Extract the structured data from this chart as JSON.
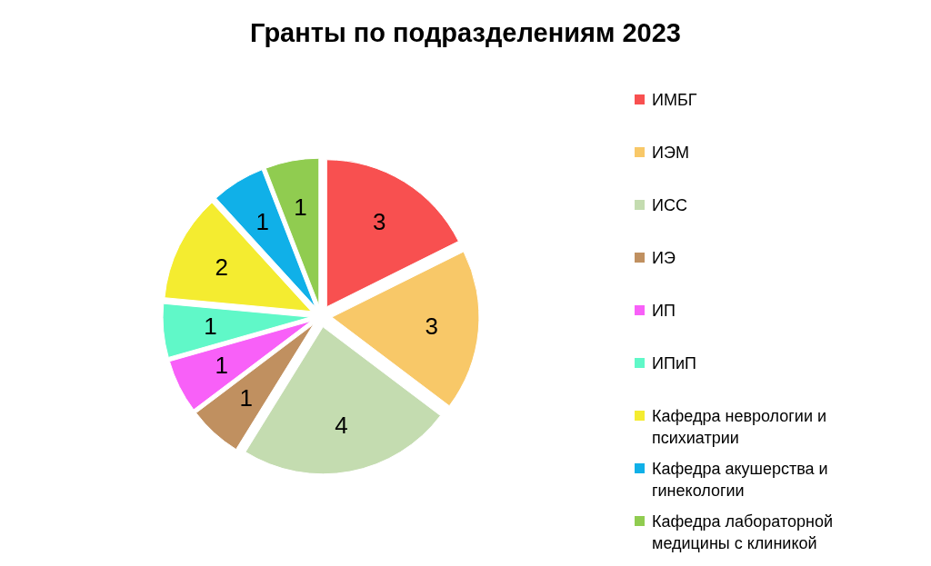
{
  "chart_data": {
    "type": "pie",
    "title": "Гранты по подразделениям 2023",
    "categories": [
      "ИМБГ",
      "ИЭМ",
      "ИСС",
      "ИЭ",
      "ИП",
      "ИПиП",
      "Кафедра неврологии и психиатрии",
      "Кафедра акушерства и гинекологии",
      "Кафедра лабораторной медицины с клиникой"
    ],
    "values": [
      3,
      3,
      4,
      1,
      1,
      1,
      2,
      1,
      1
    ],
    "colors": [
      "#f85050",
      "#f8c868",
      "#c4dcb0",
      "#c09060",
      "#f860f8",
      "#60f8c8",
      "#f4ec30",
      "#10b0e8",
      "#90cc50"
    ],
    "data_labels": true,
    "legend": "right"
  }
}
